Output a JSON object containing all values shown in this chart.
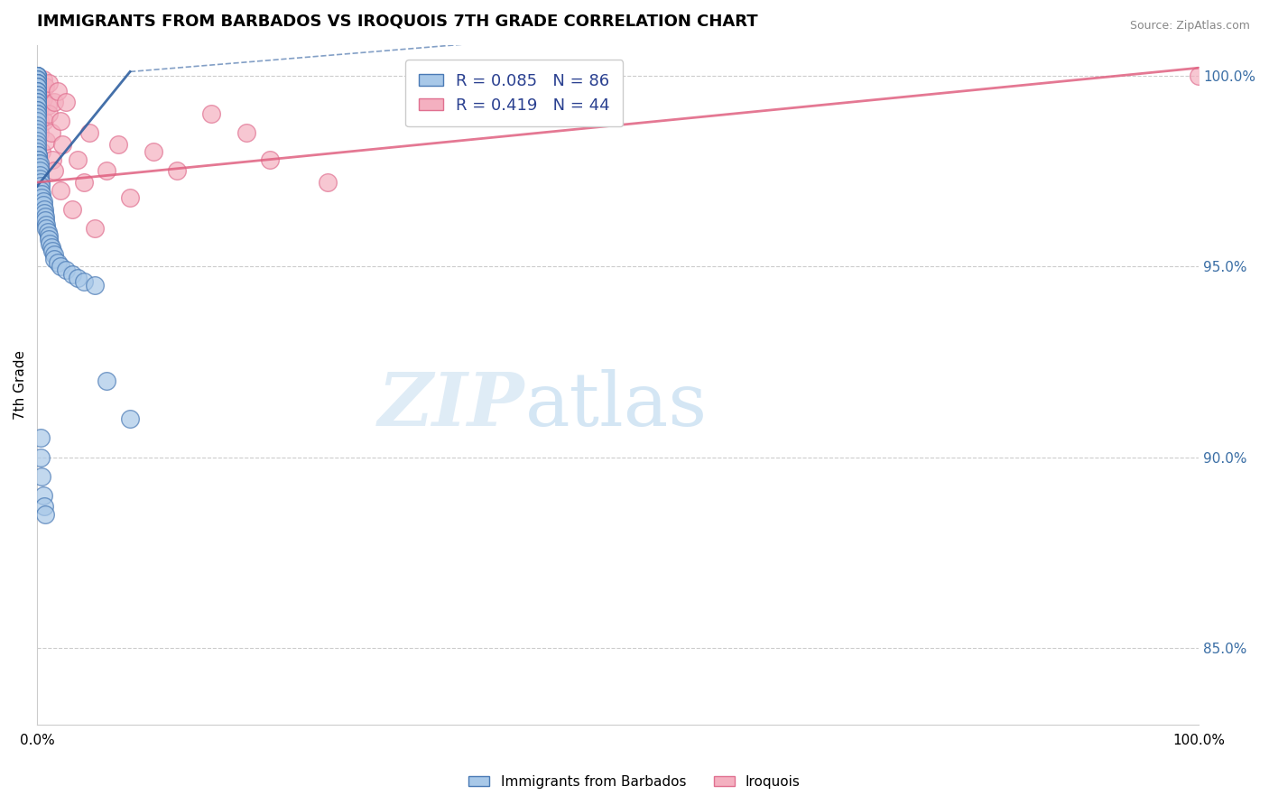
{
  "title": "IMMIGRANTS FROM BARBADOS VS IROQUOIS 7TH GRADE CORRELATION CHART",
  "source": "Source: ZipAtlas.com",
  "ylabel": "7th Grade",
  "right_yticks": [
    85.0,
    90.0,
    95.0,
    100.0
  ],
  "blue_R": 0.085,
  "blue_N": 86,
  "pink_R": 0.419,
  "pink_N": 44,
  "blue_color": "#a8c8e8",
  "pink_color": "#f4b0c0",
  "blue_edge_color": "#4a7ab5",
  "pink_edge_color": "#e07090",
  "blue_line_color": "#3060a0",
  "pink_line_color": "#e06080",
  "watermark_zip": "ZIP",
  "watermark_atlas": "atlas",
  "blue_scatter_x": [
    0.0,
    0.0,
    0.0,
    0.0,
    0.0,
    0.0,
    0.0,
    0.0,
    0.0,
    0.0,
    0.0,
    0.0,
    0.0,
    0.0,
    0.0,
    0.0,
    0.0,
    0.0,
    0.0,
    0.0,
    0.0,
    0.0,
    0.0,
    0.0,
    0.0,
    0.0,
    0.0,
    0.0,
    0.0,
    0.0,
    0.0,
    0.0,
    0.0,
    0.0,
    0.0,
    0.0,
    0.0,
    0.0,
    0.0,
    0.0,
    0.001,
    0.001,
    0.001,
    0.001,
    0.001,
    0.002,
    0.002,
    0.002,
    0.002,
    0.002,
    0.003,
    0.003,
    0.003,
    0.004,
    0.004,
    0.005,
    0.005,
    0.006,
    0.006,
    0.007,
    0.007,
    0.008,
    0.008,
    0.009,
    0.01,
    0.01,
    0.011,
    0.012,
    0.013,
    0.015,
    0.015,
    0.018,
    0.02,
    0.025,
    0.03,
    0.035,
    0.04,
    0.05,
    0.06,
    0.08,
    0.003,
    0.003,
    0.004,
    0.005,
    0.006,
    0.007
  ],
  "blue_scatter_y": [
    1.0,
    1.0,
    1.0,
    1.0,
    1.0,
    0.999,
    0.999,
    0.999,
    0.998,
    0.998,
    0.998,
    0.998,
    0.997,
    0.997,
    0.997,
    0.996,
    0.996,
    0.996,
    0.995,
    0.995,
    0.994,
    0.994,
    0.993,
    0.993,
    0.992,
    0.992,
    0.991,
    0.991,
    0.99,
    0.99,
    0.989,
    0.988,
    0.987,
    0.986,
    0.985,
    0.984,
    0.983,
    0.982,
    0.981,
    0.98,
    0.979,
    0.979,
    0.978,
    0.978,
    0.977,
    0.977,
    0.976,
    0.975,
    0.974,
    0.973,
    0.972,
    0.971,
    0.97,
    0.969,
    0.968,
    0.967,
    0.966,
    0.965,
    0.964,
    0.963,
    0.962,
    0.961,
    0.96,
    0.959,
    0.958,
    0.957,
    0.956,
    0.955,
    0.954,
    0.953,
    0.952,
    0.951,
    0.95,
    0.949,
    0.948,
    0.947,
    0.946,
    0.945,
    0.92,
    0.91,
    0.905,
    0.9,
    0.895,
    0.89,
    0.887,
    0.885
  ],
  "pink_scatter_x": [
    0.0,
    0.0,
    0.0,
    0.0,
    0.001,
    0.001,
    0.001,
    0.002,
    0.002,
    0.003,
    0.003,
    0.004,
    0.005,
    0.005,
    0.006,
    0.007,
    0.008,
    0.009,
    0.01,
    0.01,
    0.012,
    0.013,
    0.015,
    0.015,
    0.018,
    0.02,
    0.02,
    0.022,
    0.025,
    0.03,
    0.035,
    0.04,
    0.045,
    0.05,
    0.06,
    0.07,
    0.08,
    0.1,
    0.12,
    0.15,
    0.18,
    0.2,
    0.25,
    1.0
  ],
  "pink_scatter_y": [
    0.997,
    0.996,
    0.993,
    0.975,
    0.998,
    0.995,
    0.99,
    0.988,
    0.985,
    0.996,
    0.992,
    0.98,
    0.999,
    0.994,
    0.988,
    0.997,
    0.983,
    0.992,
    0.998,
    0.99,
    0.985,
    0.978,
    0.993,
    0.975,
    0.996,
    0.988,
    0.97,
    0.982,
    0.993,
    0.965,
    0.978,
    0.972,
    0.985,
    0.96,
    0.975,
    0.982,
    0.968,
    0.98,
    0.975,
    0.99,
    0.985,
    0.978,
    0.972,
    1.0
  ],
  "xlim": [
    0.0,
    1.0
  ],
  "ylim": [
    0.83,
    1.008
  ],
  "blue_trend_x": [
    0.0,
    0.08
  ],
  "blue_trend_y": [
    0.971,
    1.001
  ],
  "pink_trend_x": [
    0.0,
    1.0
  ],
  "pink_trend_y": [
    0.972,
    1.002
  ]
}
